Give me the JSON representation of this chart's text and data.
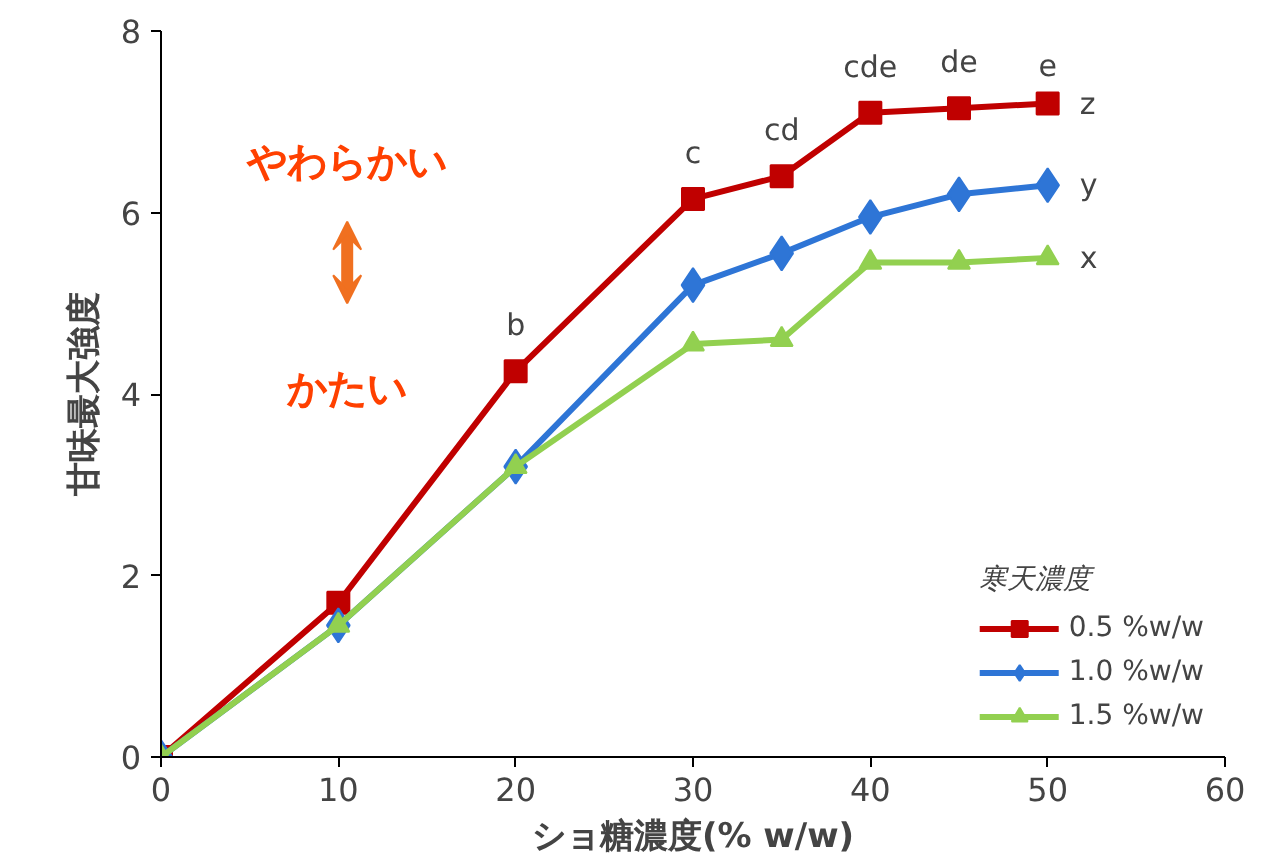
{
  "chart_data": {
    "type": "line",
    "xlabel": "ショ糖濃度(% w/w)",
    "ylabel": "甘味最大強度",
    "legend_title": "寒天濃度",
    "x": [
      0,
      10,
      20,
      30,
      35,
      40,
      45,
      50
    ],
    "series": [
      {
        "name": "0.5 %w/w",
        "color": "#c00000",
        "marker": "square",
        "values": [
          0,
          1.7,
          4.25,
          6.15,
          6.4,
          7.1,
          7.15,
          7.2
        ]
      },
      {
        "name": "1.0 %w/w",
        "color": "#2e75d6",
        "marker": "diamond",
        "values": [
          0,
          1.45,
          3.2,
          5.2,
          5.55,
          5.95,
          6.2,
          6.3
        ]
      },
      {
        "name": "1.5 %w/w",
        "color": "#92d050",
        "marker": "triangle",
        "values": [
          0,
          1.45,
          3.2,
          4.55,
          4.6,
          5.45,
          5.45,
          5.5
        ]
      }
    ],
    "xlim": [
      0,
      60
    ],
    "xticks": [
      0,
      10,
      20,
      30,
      40,
      50,
      60
    ],
    "ylim": [
      0,
      8
    ],
    "yticks": [
      0,
      2,
      4,
      6,
      8
    ],
    "grid": false,
    "legend": "bottom right",
    "line_style": "solid",
    "annotations": [
      {
        "text": "b",
        "x": 20,
        "y": 4.25
      },
      {
        "text": "c",
        "x": 30,
        "y": 6.15
      },
      {
        "text": "cd",
        "x": 35,
        "y": 6.4
      },
      {
        "text": "cde",
        "x": 40,
        "y": 7.1
      },
      {
        "text": "de",
        "x": 45,
        "y": 7.15
      },
      {
        "text": "e",
        "x": 50,
        "y": 7.2
      },
      {
        "text": "z",
        "x": 50,
        "y": 7.2
      },
      {
        "text": "y",
        "x": 50,
        "y": 6.3
      },
      {
        "text": "x",
        "x": 50,
        "y": 5.5
      },
      "やわらかい",
      "かたい"
    ]
  }
}
